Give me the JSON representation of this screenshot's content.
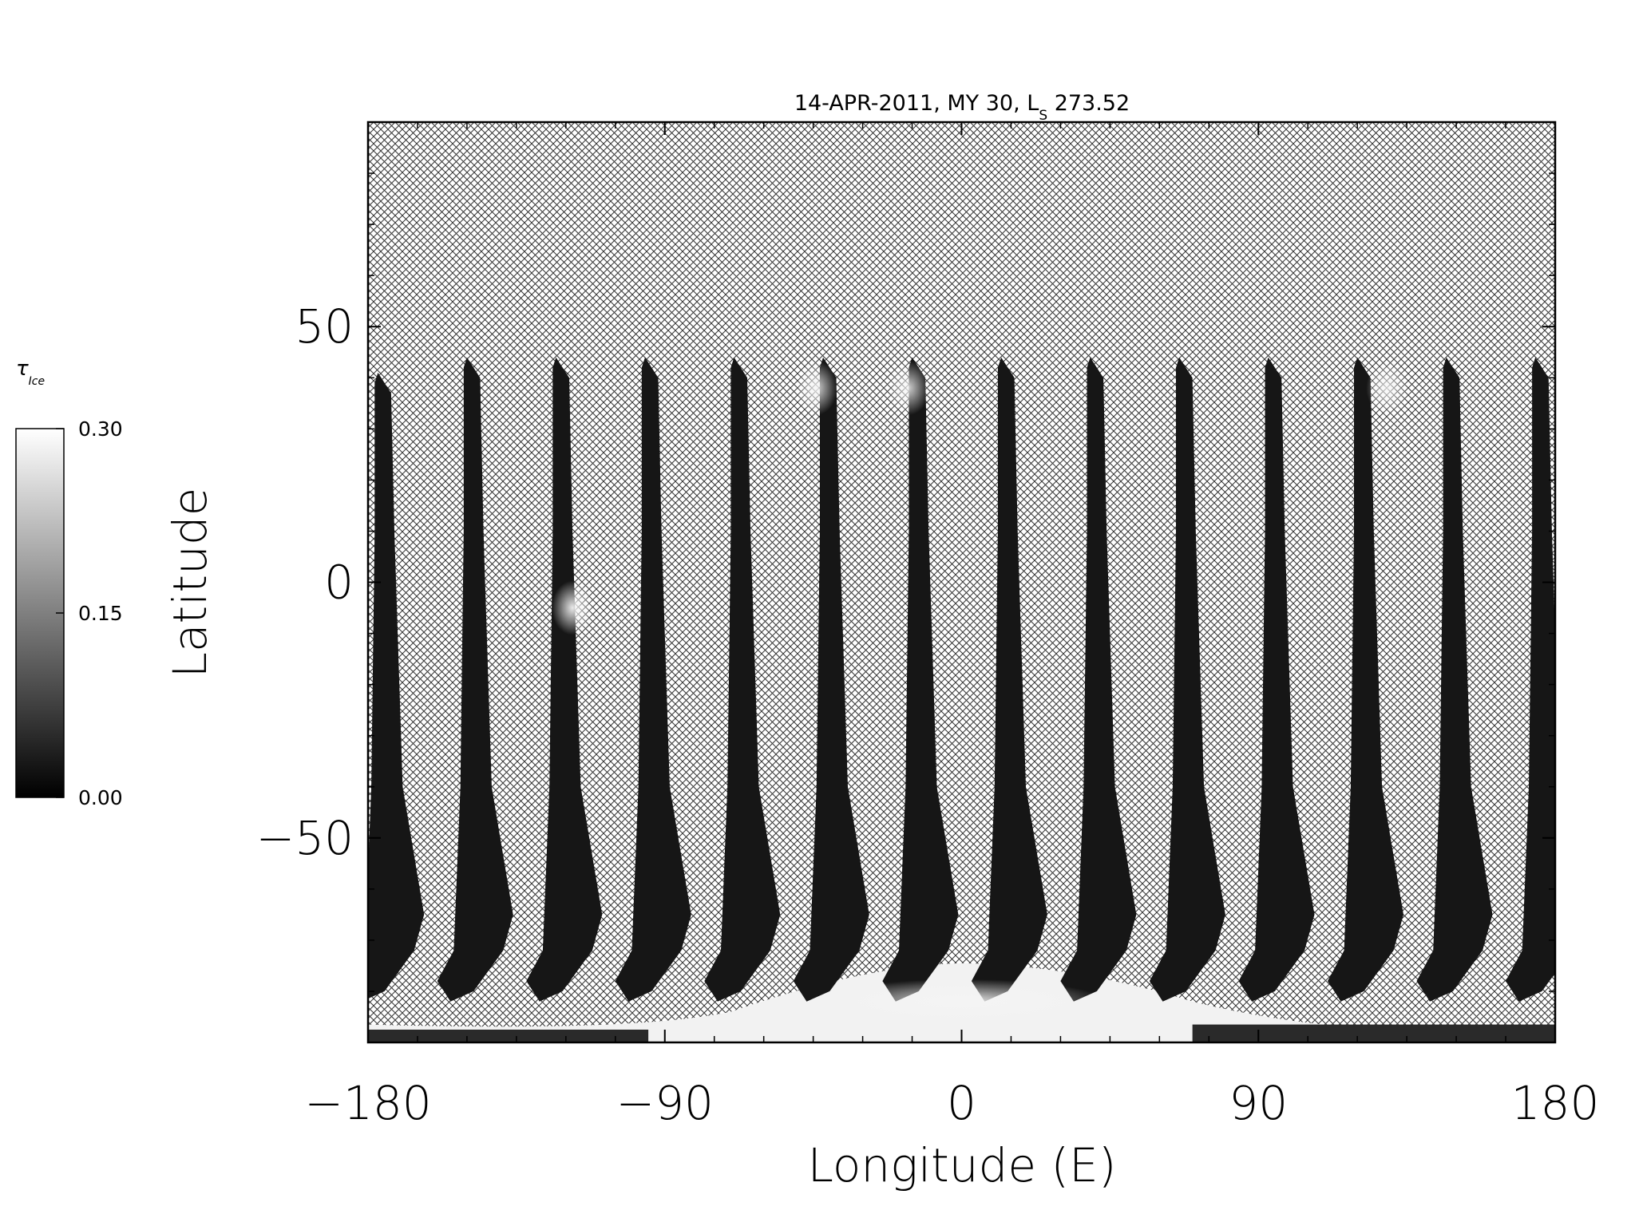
{
  "chart_data": {
    "type": "heatmap",
    "title": {
      "prefix": "14-APR-2011, MY 30,  L",
      "subscript": "S",
      "suffix": " 273.52"
    },
    "xlabel": "Longitude (E)",
    "ylabel": "Latitude",
    "xlim": [
      -180,
      180
    ],
    "ylim": [
      -90,
      90
    ],
    "x_ticks": [
      {
        "value": -180,
        "label": "−180"
      },
      {
        "value": -90,
        "label": "−90"
      },
      {
        "value": 0,
        "label": "0"
      },
      {
        "value": 90,
        "label": "90"
      },
      {
        "value": 180,
        "label": "180"
      }
    ],
    "y_ticks": [
      {
        "value": -50,
        "label": "−50"
      },
      {
        "value": 0,
        "label": "0"
      },
      {
        "value": 50,
        "label": "50"
      }
    ],
    "no_data_pattern": "crosshatch",
    "colorbar": {
      "label_symbol": "τ",
      "label_subscript": "Ice",
      "min": 0.0,
      "max": 0.3,
      "colormap": "grayscale (black = 0.00, white = 0.30)",
      "ticks": [
        {
          "value": 0.0,
          "label": "0.00"
        },
        {
          "value": 0.15,
          "label": "0.15"
        },
        {
          "value": 0.3,
          "label": "0.30"
        }
      ]
    },
    "swaths": [
      {
        "start_lon": -177,
        "top_lat": 41
      },
      {
        "start_lon": -150,
        "top_lat": 44
      },
      {
        "start_lon": -123,
        "top_lat": 44
      },
      {
        "start_lon": -96,
        "top_lat": 44
      },
      {
        "start_lon": -69,
        "top_lat": 44
      },
      {
        "start_lon": -42,
        "top_lat": 44
      },
      {
        "start_lon": -15,
        "top_lat": 44
      },
      {
        "start_lon": 12,
        "top_lat": 44
      },
      {
        "start_lon": 39,
        "top_lat": 44
      },
      {
        "start_lon": 66,
        "top_lat": 44
      },
      {
        "start_lon": 93,
        "top_lat": 44
      },
      {
        "start_lon": 120,
        "top_lat": 44
      },
      {
        "start_lon": 147,
        "top_lat": 44
      },
      {
        "start_lon": 174,
        "top_lat": 44
      }
    ],
    "bright_features": [
      {
        "lon": -44,
        "lat": 38,
        "tau": 0.27
      },
      {
        "lon": -16,
        "lat": 38,
        "tau": 0.26
      },
      {
        "lon": 129,
        "lat": 38,
        "tau": 0.24
      },
      {
        "lon": -118,
        "lat": -5,
        "tau": 0.3
      },
      {
        "lon": 0,
        "lat": -82,
        "tau": 0.3
      }
    ]
  }
}
